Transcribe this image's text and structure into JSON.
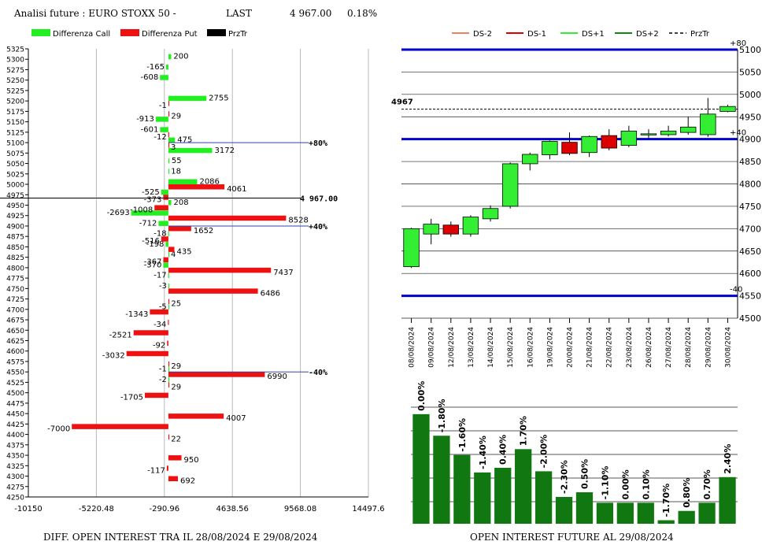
{
  "header": {
    "title": "Analisi future : EURO STOXX 50 -",
    "last_label": "LAST",
    "last_value": "4 967.00",
    "change": "0.18%"
  },
  "colors": {
    "call": "#22ee22",
    "put": "#ee1111",
    "ds_minus2": "#f08060",
    "ds_minus1": "#dd0000",
    "ds_plus1": "#33ee33",
    "ds_plus2": "#118811",
    "level_line": "#0000cc",
    "oi_bar": "#117711"
  },
  "chart_data": [
    {
      "type": "bar",
      "orientation": "horizontal",
      "title": "DIFF. OPEN INTEREST TRA IL 28/08/2024 E 29/08/2024",
      "legend": [
        "Differenza Call",
        "Differenza Put",
        "PrzTr"
      ],
      "x_ticks": [
        "-10150",
        "-5220.48",
        "-290.96",
        "4638.56",
        "9568.08",
        "14497.6"
      ],
      "xlim": [
        -10150,
        14497.6
      ],
      "strikes": [
        5325,
        5300,
        5275,
        5250,
        5225,
        5200,
        5175,
        5150,
        5125,
        5100,
        5075,
        5050,
        5025,
        5000,
        4975,
        4950,
        4925,
        4900,
        4875,
        4850,
        4825,
        4800,
        4775,
        4750,
        4725,
        4700,
        4675,
        4650,
        4625,
        4600,
        4575,
        4550,
        4525,
        4500,
        4475,
        4450,
        4425,
        4400,
        4375,
        4350,
        4325,
        4300,
        4275,
        4250
      ],
      "call": [
        {
          "strike": 5300,
          "value": 200
        },
        {
          "strike": 5275,
          "value": -165
        },
        {
          "strike": 5250,
          "value": -608
        },
        {
          "strike": 5200,
          "value": 2755
        },
        {
          "strike": 5150,
          "value": -913
        },
        {
          "strike": 5125,
          "value": -601
        },
        {
          "strike": 5100,
          "value": 475
        },
        {
          "strike": 5075,
          "value": 3172
        },
        {
          "strike": 5050,
          "value": 55
        },
        {
          "strike": 5025,
          "value": 18
        },
        {
          "strike": 5000,
          "value": 2086
        },
        {
          "strike": 4975,
          "value": -525
        },
        {
          "strike": 4950,
          "value": 208
        },
        {
          "strike": 4925,
          "value": -2693
        },
        {
          "strike": 4900,
          "value": -712
        },
        {
          "strike": 4875,
          "value": -18
        },
        {
          "strike": 4850,
          "value": -198
        },
        {
          "strike": 4825,
          "value": 4
        },
        {
          "strike": 4800,
          "value": -370
        },
        {
          "strike": 4775,
          "value": -17
        },
        {
          "strike": 4750,
          "value": -3
        },
        {
          "strike": 4700,
          "value": -5
        },
        {
          "strike": 4550,
          "value": -1
        },
        {
          "strike": 4525,
          "value": -2
        }
      ],
      "put": [
        {
          "strike": 5200,
          "value": -1
        },
        {
          "strike": 5175,
          "value": 29
        },
        {
          "strike": 5125,
          "value": -12
        },
        {
          "strike": 5100,
          "value": 3
        },
        {
          "strike": 5000,
          "value": 4061
        },
        {
          "strike": 4975,
          "value": -373
        },
        {
          "strike": 4950,
          "value": -1008
        },
        {
          "strike": 4925,
          "value": 8528
        },
        {
          "strike": 4900,
          "value": 1652
        },
        {
          "strike": 4875,
          "value": -516
        },
        {
          "strike": 4850,
          "value": 435
        },
        {
          "strike": 4825,
          "value": -367
        },
        {
          "strike": 4800,
          "value": 7437
        },
        {
          "strike": 4750,
          "value": 6486
        },
        {
          "strike": 4725,
          "value": 25
        },
        {
          "strike": 4700,
          "value": -1343
        },
        {
          "strike": 4675,
          "value": -34
        },
        {
          "strike": 4650,
          "value": -2521
        },
        {
          "strike": 4625,
          "value": -92
        },
        {
          "strike": 4600,
          "value": -3032
        },
        {
          "strike": 4575,
          "value": 29
        },
        {
          "strike": 4550,
          "value": 6990
        },
        {
          "strike": 4525,
          "value": 29
        },
        {
          "strike": 4500,
          "value": -1705
        },
        {
          "strike": 4450,
          "value": 4007
        },
        {
          "strike": 4425,
          "value": -7000
        },
        {
          "strike": 4400,
          "value": 22
        },
        {
          "strike": 4350,
          "value": 950
        },
        {
          "strike": 4325,
          "value": -117
        },
        {
          "strike": 4300,
          "value": 692
        }
      ],
      "price_line": {
        "strike": 4967,
        "label": "4 967.00"
      },
      "levels": [
        {
          "strike": 5100,
          "label": "+80%"
        },
        {
          "strike": 4900,
          "label": "+40%"
        },
        {
          "strike": 4550,
          "label": "-40%"
        }
      ]
    },
    {
      "type": "candlestick",
      "legend": [
        "DS-2",
        "DS-1",
        "DS+1",
        "DS+2",
        "PrzTr"
      ],
      "ylim": [
        4500,
        5100
      ],
      "y_ticks": [
        5100,
        5050,
        5000,
        4950,
        4900,
        4850,
        4800,
        4750,
        4700,
        4650,
        4600,
        4550,
        4500
      ],
      "last_price": {
        "value": 4967,
        "label": "4967"
      },
      "levels": [
        {
          "value": 5100,
          "label": "+80"
        },
        {
          "value": 4900,
          "label": "+40"
        },
        {
          "value": 4550,
          "label": "-40"
        }
      ],
      "candles": [
        {
          "date": "08/08/2024",
          "open": 4615,
          "close": 4700,
          "high": 4702,
          "low": 4612
        },
        {
          "date": "09/08/2024",
          "open": 4688,
          "close": 4710,
          "high": 4722,
          "low": 4665
        },
        {
          "date": "12/08/2024",
          "open": 4708,
          "close": 4688,
          "high": 4716,
          "low": 4682
        },
        {
          "date": "13/08/2024",
          "open": 4688,
          "close": 4726,
          "high": 4730,
          "low": 4682
        },
        {
          "date": "14/08/2024",
          "open": 4722,
          "close": 4745,
          "high": 4752,
          "low": 4716
        },
        {
          "date": "15/08/2024",
          "open": 4750,
          "close": 4845,
          "high": 4848,
          "low": 4745
        },
        {
          "date": "16/08/2024",
          "open": 4845,
          "close": 4866,
          "high": 4870,
          "low": 4830
        },
        {
          "date": "19/08/2024",
          "open": 4865,
          "close": 4895,
          "high": 4897,
          "low": 4855
        },
        {
          "date": "20/08/2024",
          "open": 4893,
          "close": 4868,
          "high": 4915,
          "low": 4864
        },
        {
          "date": "21/08/2024",
          "open": 4870,
          "close": 4906,
          "high": 4908,
          "low": 4860
        },
        {
          "date": "22/08/2024",
          "open": 4908,
          "close": 4880,
          "high": 4922,
          "low": 4875
        },
        {
          "date": "23/08/2024",
          "open": 4886,
          "close": 4918,
          "high": 4930,
          "low": 4882
        },
        {
          "date": "26/08/2024",
          "open": 4910,
          "close": 4912,
          "high": 4922,
          "low": 4902
        },
        {
          "date": "27/08/2024",
          "open": 4910,
          "close": 4918,
          "high": 4930,
          "low": 4906
        },
        {
          "date": "28/08/2024",
          "open": 4915,
          "close": 4927,
          "high": 4950,
          "low": 4910
        },
        {
          "date": "29/08/2024",
          "open": 4910,
          "close": 4956,
          "high": 4992,
          "low": 4905
        },
        {
          "date": "30/08/2024",
          "open": 4962,
          "close": 4973,
          "high": 4977,
          "low": 4960
        }
      ]
    },
    {
      "type": "bar",
      "title": "OPEN INTEREST FUTURE AL 29/08/2024",
      "categories": [
        "08/08/2024",
        "09/08/2024",
        "12/08/2024",
        "13/08/2024",
        "14/08/2024",
        "15/08/2024",
        "16/08/2024",
        "19/08/2024",
        "20/08/2024",
        "21/08/2024",
        "22/08/2024",
        "23/08/2024",
        "26/08/2024",
        "27/08/2024",
        "28/08/2024",
        "29/08/2024"
      ],
      "values": [
        0.0,
        -1.8,
        -1.6,
        -1.4,
        0.4,
        1.7,
        -2.0,
        -2.3,
        0.5,
        -1.1,
        0.0,
        0.1,
        -1.7,
        0.8,
        0.7,
        2.4
      ],
      "bar_levels": [
        0.94,
        0.755,
        0.59,
        0.44,
        0.48,
        0.64,
        0.45,
        0.23,
        0.27,
        0.18,
        0.18,
        0.18,
        0.03,
        0.11,
        0.18,
        0.4
      ],
      "labels": [
        "0.00%",
        "-1.80%",
        "-1.60%",
        "-1.40%",
        "0.40%",
        "1.70%",
        "-2.00%",
        "-2.30%",
        "0.50%",
        "-1.10%",
        "0.00%",
        "0.10%",
        "-1.70%",
        "0.80%",
        "0.70%",
        "2.40%"
      ]
    }
  ]
}
